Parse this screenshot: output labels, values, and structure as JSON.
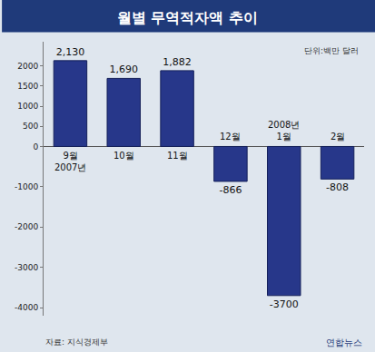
{
  "chart_data": {
    "type": "bar",
    "title": "월별 무역적자액 추이",
    "unit_label": "단위:백만 달러",
    "source": "자료: 지식경제부",
    "credit": "연합뉴스",
    "categories": [
      "9월 2007년",
      "10월",
      "11월",
      "12월",
      "2008년 1월",
      "2월"
    ],
    "values": [
      2130,
      1690,
      1882,
      -866,
      -3700,
      -808
    ],
    "value_labels": [
      "2,130",
      "1,690",
      "1,882",
      "-866",
      "-3700",
      "-808"
    ],
    "color": "#27378a",
    "ylim": [
      -4200,
      2600
    ],
    "yticks": [
      -4000,
      -3000,
      -2000,
      -1000,
      0,
      500,
      1000,
      1500,
      2000
    ],
    "grid": false,
    "data_labels": true,
    "tick_labels": "y"
  }
}
